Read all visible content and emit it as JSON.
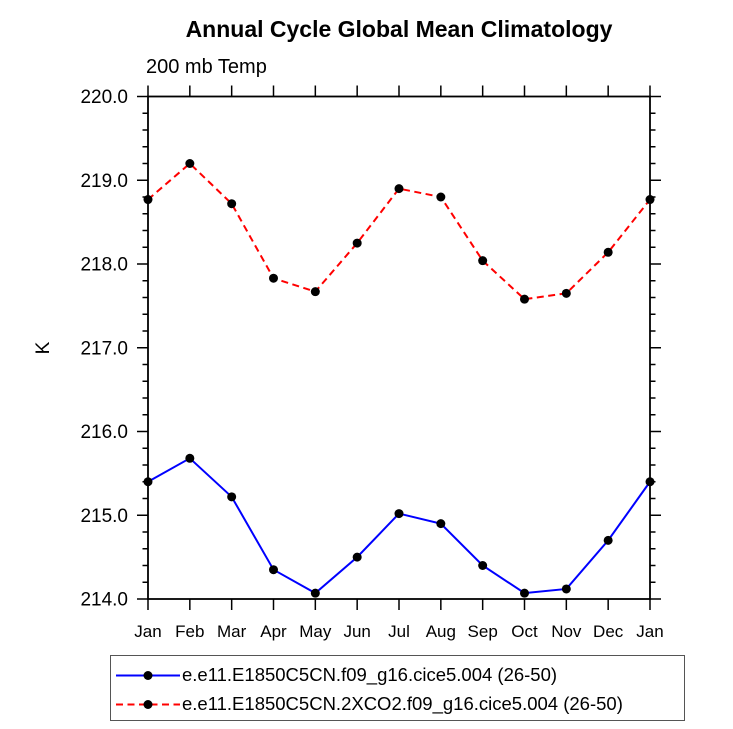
{
  "header": {
    "title": "Annual Cycle Global Mean Climatology",
    "subtitle": "200 mb Temp"
  },
  "chart_data": {
    "type": "line",
    "title": "Annual Cycle Global Mean Climatology",
    "subtitle": "200 mb Temp",
    "xlabel": "",
    "ylabel": "K",
    "categories": [
      "Jan",
      "Feb",
      "Mar",
      "Apr",
      "May",
      "Jun",
      "Jul",
      "Aug",
      "Sep",
      "Oct",
      "Nov",
      "Dec",
      "Jan"
    ],
    "ylim": [
      214.0,
      220.0
    ],
    "ytick_major": 1.0,
    "ytick_minor": 0.2,
    "ytick_labels": [
      "214.0",
      "215.0",
      "216.0",
      "217.0",
      "218.0",
      "219.0",
      "220.0"
    ],
    "grid": false,
    "legend_position": "bottom",
    "frame_color": "#000000",
    "marker_color": "#000000",
    "series": [
      {
        "name": "e.e11.E1850C5CN.f09_g16.cice5.004 (26-50)",
        "color": "#0000ff",
        "style": "solid",
        "marker": "filled-circle",
        "values": [
          215.4,
          215.68,
          215.22,
          214.35,
          214.07,
          214.5,
          215.02,
          214.9,
          214.4,
          214.07,
          214.12,
          214.7,
          215.4
        ]
      },
      {
        "name": "e.e11.E1850C5CN.2XCO2.f09_g16.cice5.004 (26-50)",
        "color": "#ff0000",
        "style": "dashed",
        "marker": "filled-circle",
        "values": [
          218.77,
          219.2,
          218.72,
          217.83,
          217.67,
          218.25,
          218.9,
          218.8,
          218.04,
          217.58,
          217.65,
          218.14,
          218.77
        ]
      }
    ]
  }
}
